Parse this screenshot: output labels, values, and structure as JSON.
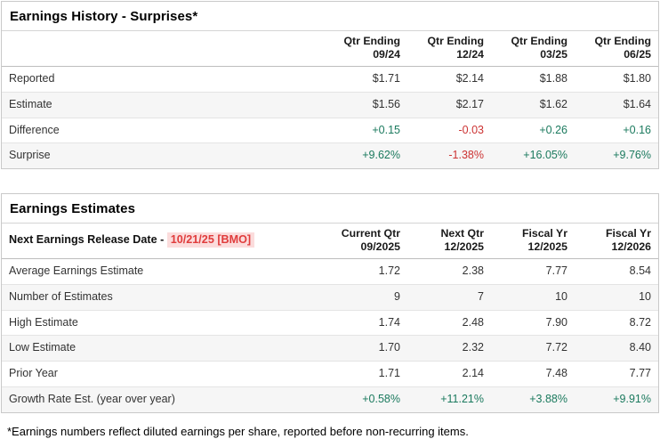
{
  "colors": {
    "positive": "#1b7a5e",
    "negative": "#cc3333",
    "date_text": "#e03c3c",
    "date_bg": "#fbdcdc"
  },
  "history": {
    "title": "Earnings History - Surprises*",
    "columns": [
      {
        "l1": "Qtr Ending",
        "l2": "09/24"
      },
      {
        "l1": "Qtr Ending",
        "l2": "12/24"
      },
      {
        "l1": "Qtr Ending",
        "l2": "03/25"
      },
      {
        "l1": "Qtr Ending",
        "l2": "06/25"
      }
    ],
    "rows": [
      {
        "label": "Reported",
        "values": [
          "$1.71",
          "$2.14",
          "$1.88",
          "$1.80"
        ]
      },
      {
        "label": "Estimate",
        "values": [
          "$1.56",
          "$2.17",
          "$1.62",
          "$1.64"
        ]
      },
      {
        "label": "Difference",
        "values": [
          "+0.15",
          "-0.03",
          "+0.26",
          "+0.16"
        ],
        "tones": [
          "pos",
          "neg",
          "pos",
          "pos"
        ]
      },
      {
        "label": "Surprise",
        "values": [
          "+9.62%",
          "-1.38%",
          "+16.05%",
          "+9.76%"
        ],
        "tones": [
          "pos",
          "neg",
          "pos",
          "pos"
        ]
      }
    ]
  },
  "estimates": {
    "title": "Earnings Estimates",
    "release_label": "Next Earnings Release Date - ",
    "release_date": "10/21/25 [BMO]",
    "columns": [
      {
        "l1": "Current Qtr",
        "l2": "09/2025"
      },
      {
        "l1": "Next Qtr",
        "l2": "12/2025"
      },
      {
        "l1": "Fiscal Yr",
        "l2": "12/2025"
      },
      {
        "l1": "Fiscal Yr",
        "l2": "12/2026"
      }
    ],
    "rows": [
      {
        "label": "Average Earnings Estimate",
        "values": [
          "1.72",
          "2.38",
          "7.77",
          "8.54"
        ]
      },
      {
        "label": "Number of Estimates",
        "values": [
          "9",
          "7",
          "10",
          "10"
        ]
      },
      {
        "label": "High Estimate",
        "values": [
          "1.74",
          "2.48",
          "7.90",
          "8.72"
        ]
      },
      {
        "label": "Low Estimate",
        "values": [
          "1.70",
          "2.32",
          "7.72",
          "8.40"
        ]
      },
      {
        "label": "Prior Year",
        "values": [
          "1.71",
          "2.14",
          "7.48",
          "7.77"
        ]
      },
      {
        "label": "Growth Rate Est. (year over year)",
        "values": [
          "+0.58%",
          "+11.21%",
          "+3.88%",
          "+9.91%"
        ],
        "tones": [
          "pos",
          "pos",
          "pos",
          "pos"
        ]
      }
    ]
  },
  "footnote": "*Earnings numbers reflect diluted earnings per share, reported before non-recurring items."
}
